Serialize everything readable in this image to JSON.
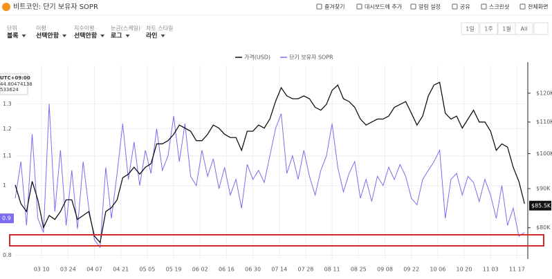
{
  "header": {
    "title": "비트코인: 단기 보유자 SOPR",
    "actions": [
      "즐겨찾기",
      "대시보드에 추가",
      "알림 설정",
      "공유",
      "스크린샷",
      "전체화면"
    ]
  },
  "controls": [
    {
      "label": "단위",
      "value": "블록"
    },
    {
      "label": "이평",
      "value": "선택안함"
    },
    {
      "label": "지수이평",
      "value": "선택안함"
    },
    {
      "label": "눈금(스케일)",
      "value": "로그"
    },
    {
      "label": "차트 스타일",
      "value": "라인"
    }
  ],
  "timeframes": [
    "1일",
    "1주",
    "1월",
    "All"
  ],
  "tooltip": {
    "timezone": "UTC+09:00",
    "lines": [
      "44.80474138",
      "533624"
    ]
  },
  "chart_data": {
    "type": "line",
    "x": [
      0,
      3,
      6,
      9,
      12,
      15,
      18,
      21,
      24,
      27,
      30,
      33,
      36,
      39,
      42,
      45,
      48,
      51,
      54,
      57,
      60,
      63,
      66,
      69,
      72,
      75,
      78,
      81,
      84,
      87,
      90,
      93,
      96,
      99,
      102,
      105,
      108,
      111,
      114,
      117,
      120,
      123,
      126,
      129,
      132,
      135,
      138,
      141,
      144,
      147,
      150,
      153,
      156,
      159,
      162,
      165,
      168,
      171,
      174,
      177,
      180,
      183,
      186,
      189,
      192,
      195,
      198,
      201,
      204,
      207,
      210,
      213,
      216,
      219,
      222,
      225,
      228,
      231,
      234,
      237,
      240,
      243,
      246,
      249,
      252,
      255,
      258,
      261,
      264,
      267,
      270
    ],
    "xlim": [
      0,
      271
    ],
    "xticks": [
      {
        "value": 14,
        "label": "03 10"
      },
      {
        "value": 28,
        "label": "03 24"
      },
      {
        "value": 42,
        "label": "04 07"
      },
      {
        "value": 56,
        "label": "04 21"
      },
      {
        "value": 70,
        "label": "05 05"
      },
      {
        "value": 84,
        "label": "05 19"
      },
      {
        "value": 98,
        "label": "06 02"
      },
      {
        "value": 112,
        "label": "06 16"
      },
      {
        "value": 126,
        "label": "06 30"
      },
      {
        "value": 140,
        "label": "07 14"
      },
      {
        "value": 154,
        "label": "07 28"
      },
      {
        "value": 168,
        "label": "08 11"
      },
      {
        "value": 182,
        "label": "08 25"
      },
      {
        "value": 196,
        "label": "09 08"
      },
      {
        "value": 210,
        "label": "09 22"
      },
      {
        "value": 224,
        "label": "10 06"
      },
      {
        "value": 238,
        "label": "10 20"
      },
      {
        "value": 252,
        "label": "11 03"
      },
      {
        "value": 266,
        "label": "11 17"
      }
    ],
    "series": [
      {
        "name": "가격(USD)",
        "color": "#111111",
        "axis": "y2",
        "values": [
          91000,
          86000,
          84000,
          92000,
          87000,
          80000,
          83000,
          82000,
          84000,
          87000,
          87000,
          82000,
          83000,
          84000,
          78000,
          76500,
          84000,
          85000,
          87000,
          93000,
          94000,
          96000,
          94000,
          96000,
          97000,
          103000,
          103000,
          104000,
          106000,
          109000,
          108000,
          107000,
          104000,
          104000,
          106000,
          109000,
          108000,
          106000,
          105000,
          105000,
          101000,
          107000,
          107000,
          109000,
          108000,
          111000,
          117000,
          122000,
          119000,
          118000,
          118000,
          119000,
          118000,
          115000,
          114000,
          116000,
          121000,
          123000,
          118000,
          117000,
          115000,
          111000,
          109000,
          110000,
          111000,
          111000,
          112000,
          115000,
          116000,
          117000,
          113000,
          109000,
          112000,
          119000,
          123000,
          124000,
          113000,
          111000,
          112000,
          108000,
          111000,
          114000,
          110000,
          110000,
          107000,
          101000,
          103000,
          102000,
          96000,
          92000,
          86000
        ]
      },
      {
        "name": "단기 보유자 SOPR",
        "color": "#7b6cf0",
        "values": [
          0.96,
          1.08,
          0.88,
          1.18,
          0.9,
          0.86,
          1.3,
          0.92,
          1.12,
          0.88,
          1.05,
          0.87,
          1.08,
          0.93,
          0.84,
          0.82,
          1.06,
          0.9,
          1.04,
          1.22,
          1.02,
          1.15,
          1.0,
          1.12,
          1.04,
          1.2,
          1.05,
          1.1,
          1.25,
          1.08,
          1.22,
          1.03,
          1.0,
          1.12,
          1.03,
          1.09,
          0.99,
          1.06,
          0.97,
          1.02,
          0.93,
          1.07,
          1.02,
          1.05,
          1.01,
          1.1,
          1.2,
          1.26,
          1.04,
          1.1,
          1.02,
          1.12,
          1.03,
          0.97,
          1.05,
          1.1,
          1.22,
          1.06,
          0.98,
          1.04,
          1.08,
          0.96,
          1.02,
          0.95,
          1.03,
          1.0,
          1.06,
          1.02,
          1.07,
          1.03,
          0.96,
          0.94,
          1.02,
          1.05,
          1.08,
          1.12,
          0.9,
          1.02,
          1.04,
          0.97,
          1.03,
          1.01,
          0.95,
          1.02,
          0.97,
          0.9,
          1.0,
          0.88,
          0.93,
          0.85,
          0.86
        ]
      }
    ],
    "ylim": [
      0.79,
      1.47
    ],
    "yticks": [
      0.8,
      1,
      1.1,
      1.2,
      1.3
    ],
    "log_scale": true,
    "y2lim": [
      72800,
      130400
    ],
    "y2ticks": [
      {
        "value": 80000,
        "label": "$80K"
      },
      {
        "value": 90000,
        "label": "$90K"
      },
      {
        "value": 100000,
        "label": "$100K"
      },
      {
        "value": 110000,
        "label": "$110K"
      },
      {
        "value": 120000,
        "label": "$120K"
      }
    ],
    "y2_log_scale": true,
    "grid": true,
    "last_values": [
      {
        "axis": "y",
        "value": 0.9,
        "label": "0.9"
      },
      {
        "axis": "y2",
        "value": 85500,
        "label": "$85.5K"
      }
    ]
  }
}
